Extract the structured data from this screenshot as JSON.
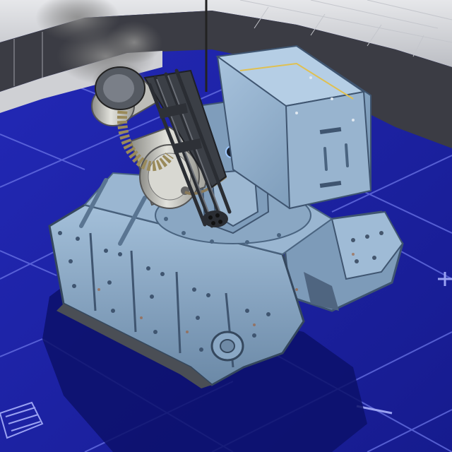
{
  "scene": {
    "floor_color": "#1c22a6",
    "floor_dark": "#151a88",
    "grid_color": "#6a74e6",
    "wall_color": "#d9dadd",
    "wall_shadow": "#3a3a40",
    "tank_color": "#8fb0cf",
    "tank_dark": "#5b7a99",
    "tank_light": "#b7d0e6",
    "metal_color": "#c9c9c4",
    "gun_color": "#3b3f46",
    "shadow_color": "#0c106a",
    "smoke_color": "#7a7a7a"
  }
}
